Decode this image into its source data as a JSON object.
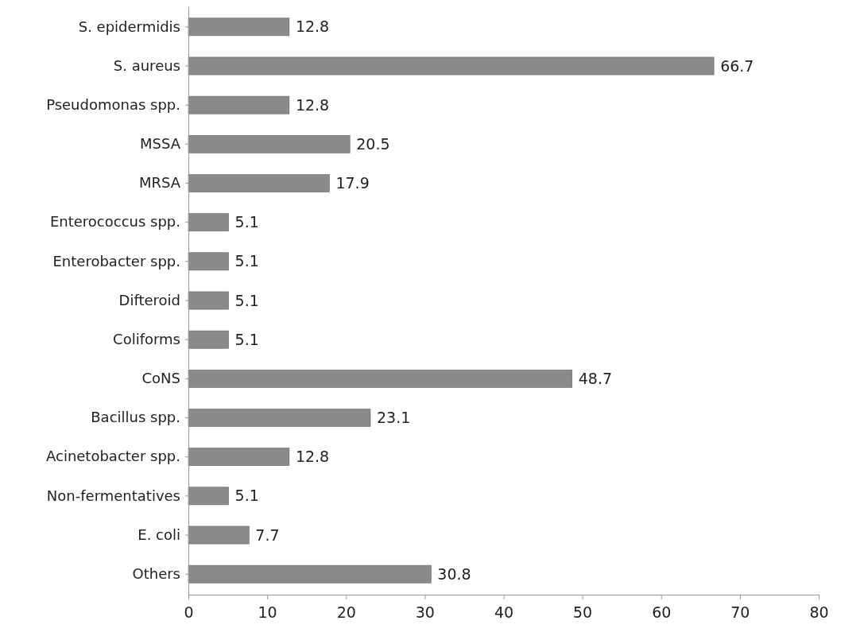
{
  "chart_data": {
    "type": "bar",
    "orientation": "horizontal",
    "categories": [
      "S. epidermidis",
      "S. aureus",
      "Pseudomonas spp.",
      "MSSA",
      "MRSA",
      "Enterococcus spp.",
      "Enterobacter spp.",
      "Difteroid",
      "Coliforms",
      "CoNS",
      "Bacillus spp.",
      "Acinetobacter spp.",
      "Non-fermentatives",
      "E. coli",
      "Others"
    ],
    "values": [
      12.8,
      66.7,
      12.8,
      20.5,
      17.9,
      5.1,
      5.1,
      5.1,
      5.1,
      48.7,
      23.1,
      12.8,
      5.1,
      7.7,
      30.8
    ],
    "color": "#8a8a8a",
    "xlim": [
      0,
      80
    ],
    "xticks": [
      0,
      10,
      20,
      30,
      40,
      50,
      60,
      70,
      80
    ],
    "data_labels": true,
    "grid": false
  }
}
